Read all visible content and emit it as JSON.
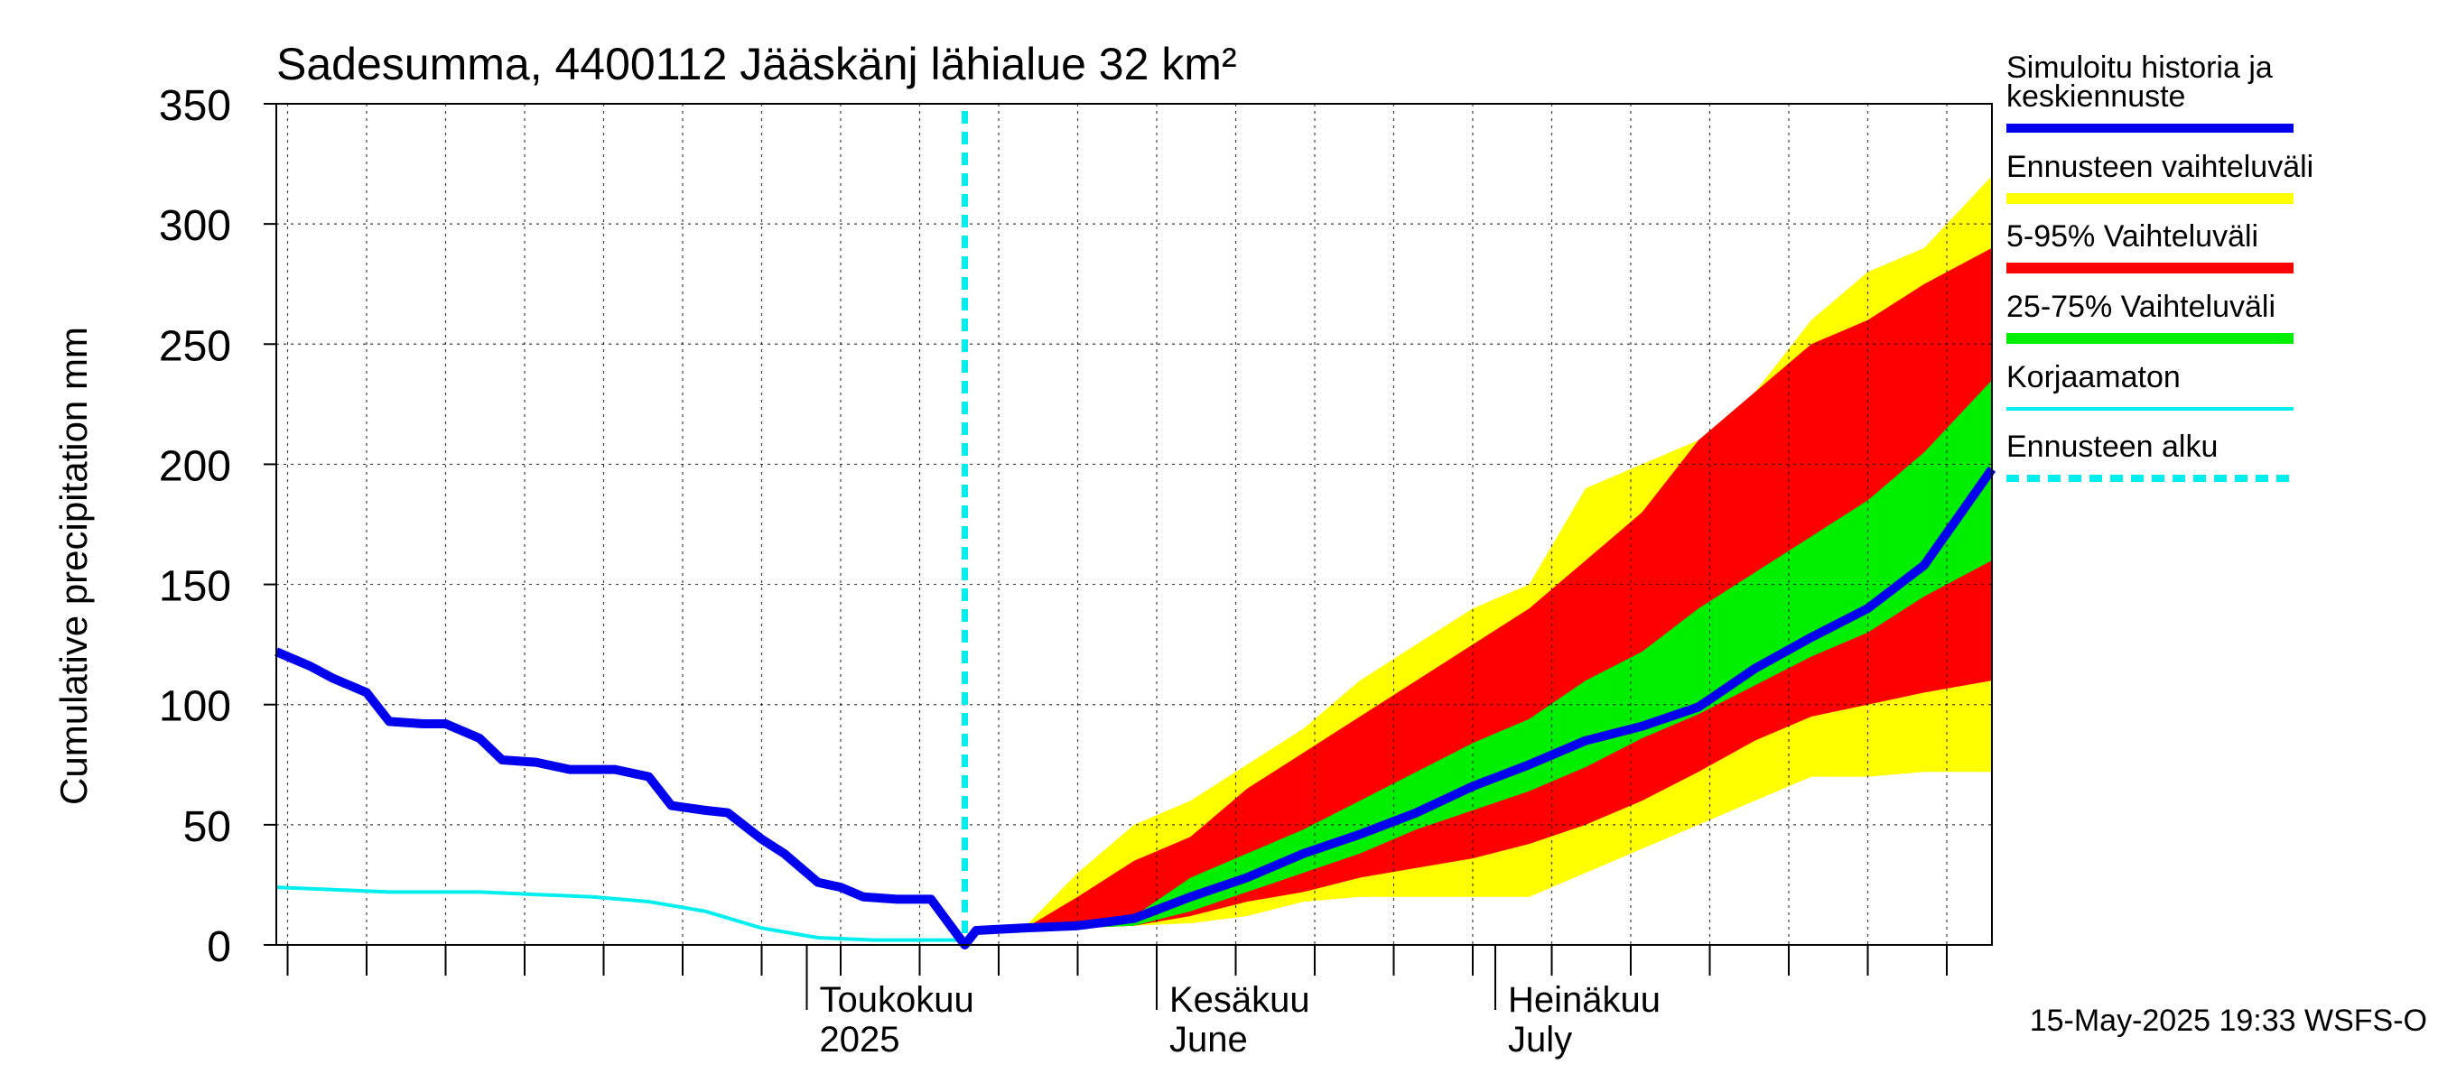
{
  "chart_data": {
    "type": "area",
    "title": "Sadesumma, 4400112 Jääskänj lähialue 32 km²",
    "ylabel": "Cumulative precipitation   mm",
    "xlabel": "",
    "ylim": [
      0,
      350
    ],
    "xlim": [
      "2025-03-15",
      "2025-08-14"
    ],
    "grid": true,
    "yticks": [
      0,
      50,
      100,
      150,
      200,
      250,
      300,
      350
    ],
    "month_labels": [
      {
        "line1": "Toukokuu",
        "line2": "2025",
        "date": "2025-05-01"
      },
      {
        "line1": "Kesäkuu",
        "line2": "June",
        "date": "2025-06-01"
      },
      {
        "line1": "Heinäkuu",
        "line2": "July",
        "date": "2025-07-01"
      }
    ],
    "forecast_start": "2025-05-15",
    "colors": {
      "history": "#0000ee",
      "full_range": "#ffff00",
      "range_5_95": "#ff0000",
      "range_25_75": "#00ee00",
      "uncorrected": "#00eeee",
      "forecast_start": "#00eeee"
    },
    "legend": [
      {
        "label": "Simuloitu historia ja keskiennuste",
        "key": "history"
      },
      {
        "label": "Ennusteen vaihteluväli",
        "key": "full_range"
      },
      {
        "label": "5-95% Vaihteluväli",
        "key": "range_5_95"
      },
      {
        "label": "25-75% Vaihteluväli",
        "key": "range_25_75"
      },
      {
        "label": "Korjaamaton",
        "key": "uncorrected"
      },
      {
        "label": "Ennusteen alku",
        "key": "forecast_start"
      }
    ],
    "legend_position": "right",
    "footer": "15-May-2025 19:33 WSFS-O",
    "series": [
      {
        "name": "Simuloitu historia ja keskiennuste",
        "x": [
          "2025-03-15",
          "2025-03-18",
          "2025-03-20",
          "2025-03-23",
          "2025-03-25",
          "2025-03-28",
          "2025-03-30",
          "2025-04-02",
          "2025-04-04",
          "2025-04-07",
          "2025-04-10",
          "2025-04-12",
          "2025-04-14",
          "2025-04-17",
          "2025-04-19",
          "2025-04-22",
          "2025-04-24",
          "2025-04-27",
          "2025-04-29",
          "2025-05-02",
          "2025-05-04",
          "2025-05-06",
          "2025-05-09",
          "2025-05-12",
          "2025-05-15",
          "2025-05-16",
          "2025-05-20",
          "2025-05-25",
          "2025-05-30",
          "2025-06-04",
          "2025-06-09",
          "2025-06-14",
          "2025-06-19",
          "2025-06-24",
          "2025-06-29",
          "2025-07-04",
          "2025-07-09",
          "2025-07-14",
          "2025-07-19",
          "2025-07-24",
          "2025-07-29",
          "2025-08-03",
          "2025-08-08",
          "2025-08-14"
        ],
        "y": [
          122,
          116,
          111,
          105,
          93,
          92,
          92,
          86,
          77,
          76,
          73,
          73,
          73,
          70,
          58,
          56,
          55,
          44,
          38,
          26,
          24,
          20,
          19,
          19,
          0,
          6,
          7,
          8,
          11,
          20,
          28,
          38,
          46,
          55,
          66,
          75,
          85,
          91,
          99,
          115,
          128,
          140,
          158,
          198
        ]
      },
      {
        "name": "Korjaamaton",
        "x": [
          "2025-03-15",
          "2025-03-20",
          "2025-03-25",
          "2025-04-02",
          "2025-04-07",
          "2025-04-12",
          "2025-04-17",
          "2025-04-22",
          "2025-04-27",
          "2025-05-02",
          "2025-05-07",
          "2025-05-12",
          "2025-05-15"
        ],
        "y": [
          24,
          23,
          22,
          22,
          21,
          20,
          18,
          14,
          7,
          3,
          2,
          2,
          2
        ]
      },
      {
        "name": "Ennusteen vaihteluväli",
        "x": [
          "2025-05-15",
          "2025-05-20",
          "2025-05-25",
          "2025-05-30",
          "2025-06-04",
          "2025-06-09",
          "2025-06-14",
          "2025-06-19",
          "2025-06-24",
          "2025-06-29",
          "2025-07-04",
          "2025-07-09",
          "2025-07-14",
          "2025-07-19",
          "2025-07-24",
          "2025-07-29",
          "2025-08-03",
          "2025-08-08",
          "2025-08-14"
        ],
        "lower": [
          0,
          6,
          7,
          8,
          9,
          12,
          18,
          20,
          20,
          20,
          20,
          30,
          40,
          50,
          60,
          70,
          70,
          72,
          72
        ],
        "upper": [
          0,
          6,
          30,
          50,
          60,
          75,
          90,
          110,
          125,
          140,
          150,
          190,
          200,
          210,
          230,
          260,
          280,
          290,
          320
        ]
      },
      {
        "name": "5-95% Vaihteluväli",
        "x": [
          "2025-05-15",
          "2025-05-20",
          "2025-05-25",
          "2025-05-30",
          "2025-06-04",
          "2025-06-09",
          "2025-06-14",
          "2025-06-19",
          "2025-06-24",
          "2025-06-29",
          "2025-07-04",
          "2025-07-09",
          "2025-07-14",
          "2025-07-19",
          "2025-07-24",
          "2025-07-29",
          "2025-08-03",
          "2025-08-08",
          "2025-08-14"
        ],
        "lower": [
          0,
          6,
          7,
          8,
          12,
          18,
          22,
          28,
          32,
          36,
          42,
          50,
          60,
          72,
          85,
          95,
          100,
          105,
          110
        ],
        "upper": [
          0,
          6,
          20,
          35,
          45,
          65,
          80,
          95,
          110,
          125,
          140,
          160,
          180,
          210,
          230,
          250,
          260,
          275,
          290
        ]
      },
      {
        "name": "25-75% Vaihteluväli",
        "x": [
          "2025-05-15",
          "2025-05-20",
          "2025-05-25",
          "2025-05-30",
          "2025-06-04",
          "2025-06-09",
          "2025-06-14",
          "2025-06-19",
          "2025-06-24",
          "2025-06-29",
          "2025-07-04",
          "2025-07-09",
          "2025-07-14",
          "2025-07-19",
          "2025-07-24",
          "2025-07-29",
          "2025-08-03",
          "2025-08-08",
          "2025-08-14"
        ],
        "lower": [
          0,
          6,
          7,
          8,
          14,
          22,
          30,
          38,
          48,
          56,
          64,
          74,
          86,
          96,
          108,
          120,
          130,
          145,
          160
        ],
        "upper": [
          0,
          6,
          8,
          12,
          28,
          38,
          48,
          60,
          72,
          84,
          94,
          110,
          122,
          140,
          155,
          170,
          185,
          205,
          235
        ]
      }
    ]
  }
}
